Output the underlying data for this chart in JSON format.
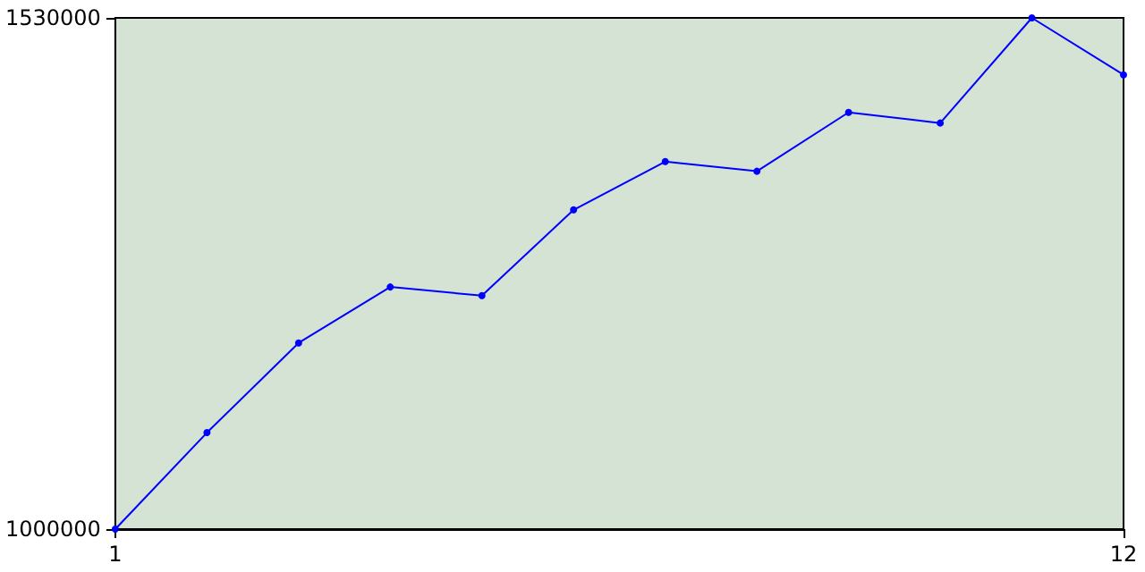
{
  "chart_data": {
    "type": "line",
    "x": [
      1,
      2,
      3,
      4,
      5,
      6,
      7,
      8,
      9,
      10,
      11,
      12
    ],
    "series": [
      {
        "color": "#0000ff",
        "values": [
          1000000,
          1100000,
          1193000,
          1251000,
          1242000,
          1331000,
          1381000,
          1371000,
          1432000,
          1421000,
          1530000,
          1471000
        ]
      }
    ],
    "xlim": [
      1,
      12
    ],
    "xticks": [
      1,
      12
    ],
    "ylim": [
      1000000,
      1530000
    ],
    "yticks": [
      1000000,
      1530000
    ],
    "grid": false,
    "marker": "circle",
    "line_style": "solid"
  }
}
